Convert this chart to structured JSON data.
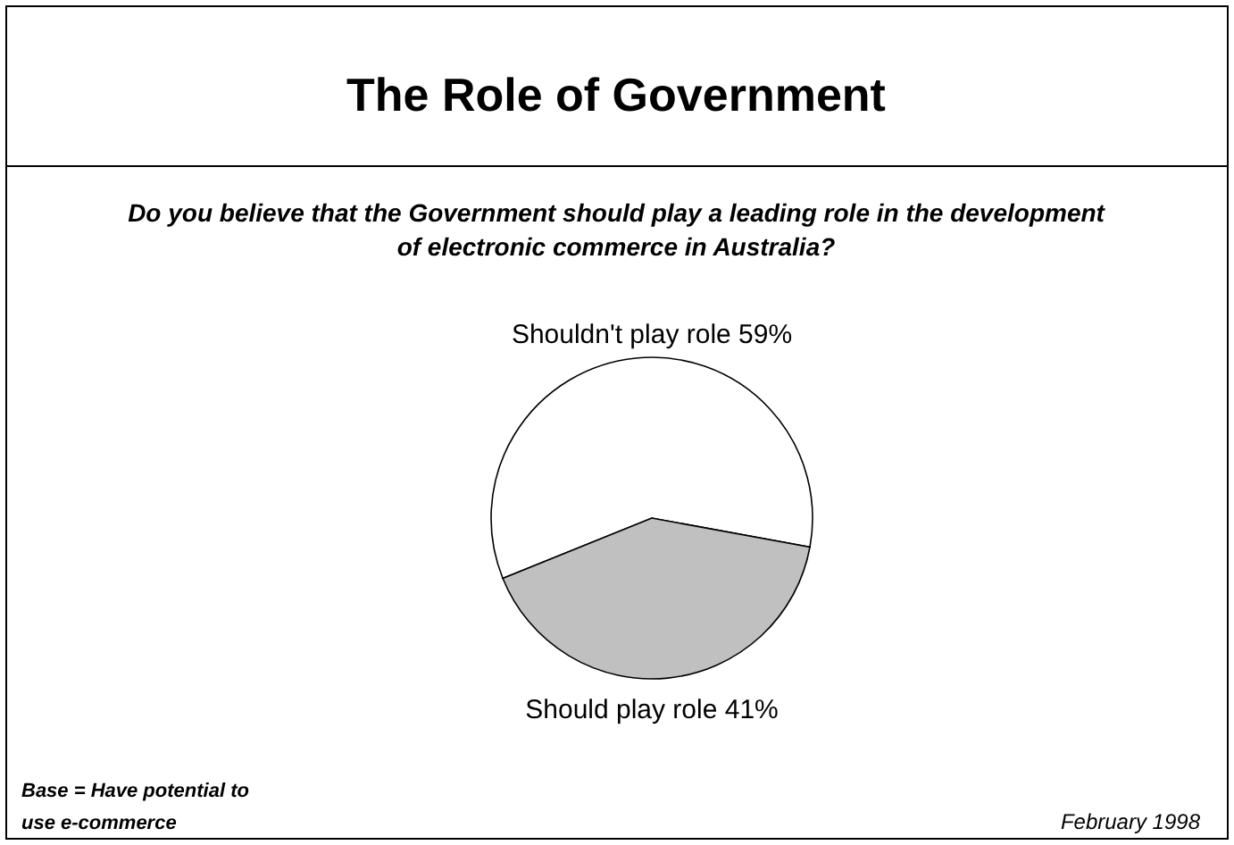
{
  "chart_data": {
    "type": "pie",
    "title": "The Role of Government",
    "subtitle": "Do you believe that the Government should play a leading role in the development of electronic commerce in Australia?",
    "categories": [
      "Shouldn't play role",
      "Should play role"
    ],
    "values": [
      59,
      41
    ],
    "value_labels": [
      "59%",
      "41%"
    ],
    "colors": [
      "#ffffff",
      "#c0c0c0"
    ],
    "annotations": [
      "Base = Have potential to use e-commerce",
      "February 1998"
    ]
  }
}
